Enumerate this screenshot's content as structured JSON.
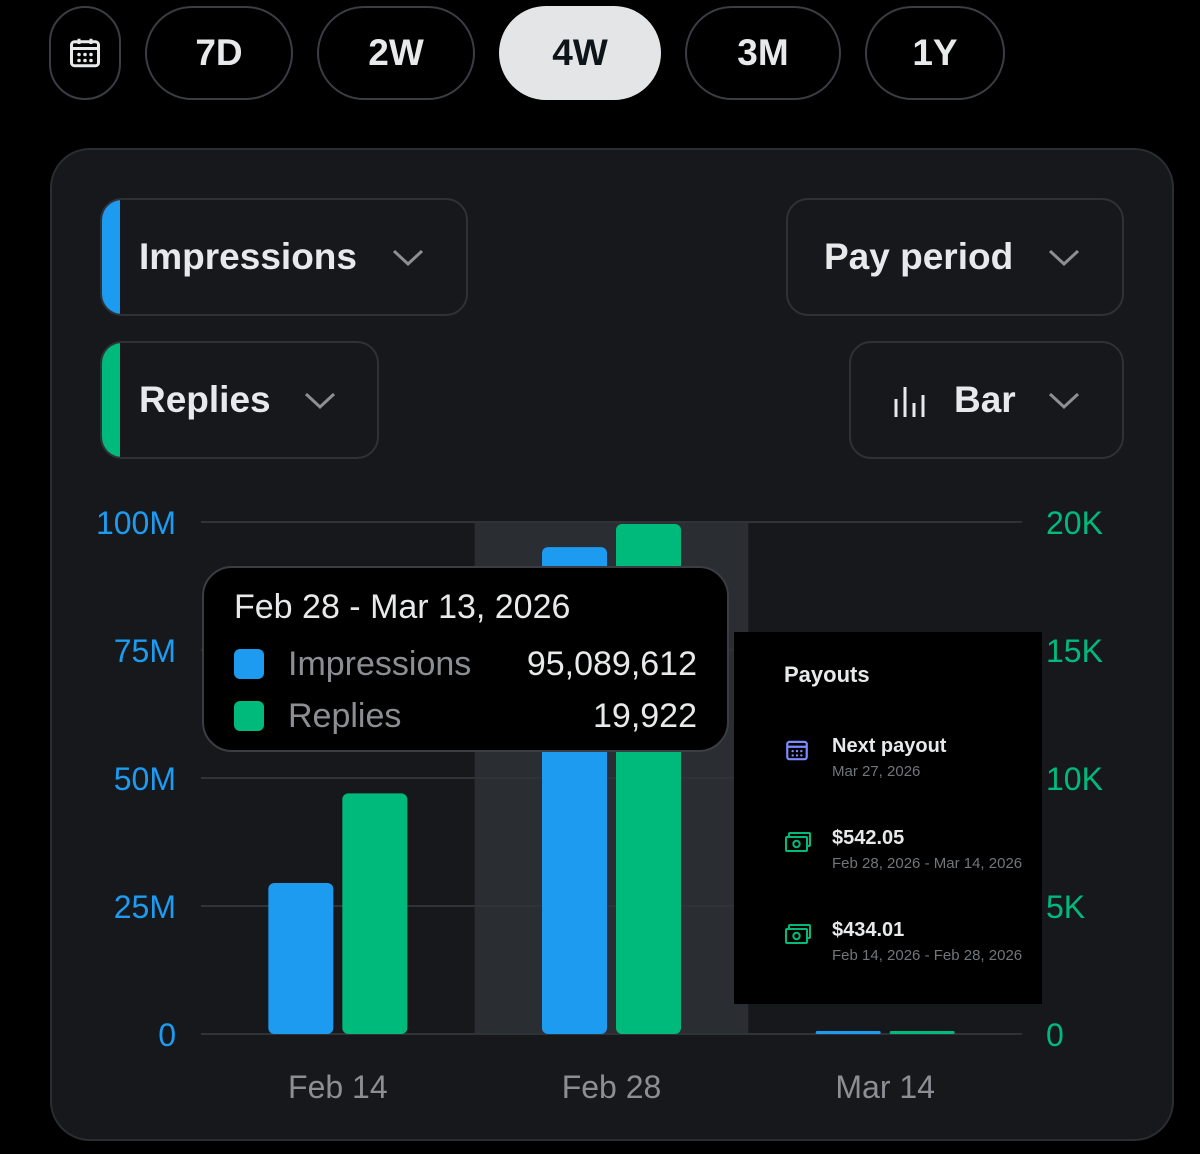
{
  "range_tabs": [
    "7D",
    "2W",
    "4W",
    "3M",
    "1Y"
  ],
  "active_range": "4W",
  "controls": {
    "metric1": {
      "label": "Impressions",
      "color": "#1d9bf0"
    },
    "metric2": {
      "label": "Replies",
      "color": "#00ba7c"
    },
    "period": {
      "label": "Pay period"
    },
    "chart_type": {
      "label": "Bar"
    }
  },
  "chart_data": {
    "type": "bar",
    "categories": [
      "Feb 14",
      "Feb 28",
      "Mar 14"
    ],
    "series": [
      {
        "name": "Impressions",
        "axis": "left",
        "color": "#1d9bf0",
        "values": [
          29500000,
          95089612,
          0
        ]
      },
      {
        "name": "Replies",
        "axis": "right",
        "color": "#00ba7c",
        "values": [
          9400,
          19922,
          0
        ]
      }
    ],
    "left_axis": {
      "ticks": [
        "0",
        "25M",
        "50M",
        "75M",
        "100M"
      ],
      "ylim": [
        0,
        100000000
      ]
    },
    "right_axis": {
      "ticks": [
        "0",
        "5K",
        "10K",
        "15K",
        "20K"
      ],
      "ylim": [
        0,
        20000
      ]
    },
    "highlighted_category": "Feb 28",
    "grid": true
  },
  "tooltip": {
    "date": "Feb 28 - Mar 13, 2026",
    "rows": [
      {
        "name": "Impressions",
        "value": "95,089,612"
      },
      {
        "name": "Replies",
        "value": "19,922"
      }
    ]
  },
  "payouts": {
    "title": "Payouts",
    "next": {
      "label": "Next payout",
      "date": "Mar 27, 2026"
    },
    "items": [
      {
        "amount": "$542.05",
        "range": "Feb 28, 2026 - Mar 14, 2026"
      },
      {
        "amount": "$434.01",
        "range": "Feb 14, 2026 - Feb 28, 2026"
      }
    ]
  }
}
